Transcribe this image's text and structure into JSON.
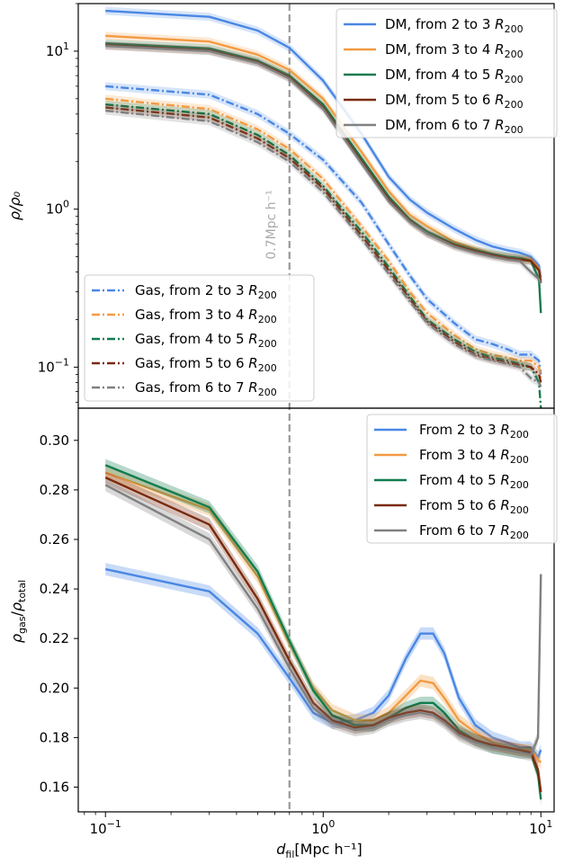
{
  "figure": {
    "xlabel_main": "d",
    "xlabel_sub": "fil",
    "xlabel_units": "[Mpc h⁻¹]",
    "vline_label": "0.7Mpc h⁻¹"
  },
  "chart_data": [
    {
      "type": "line",
      "panel": "top",
      "xscale": "log",
      "yscale": "log",
      "xlim": [
        0.075,
        11.5
      ],
      "ylim": [
        0.055,
        20
      ],
      "ylabel": "ρ/ρ₀",
      "xticks": [
        0.1,
        1,
        10
      ],
      "xtick_labels": [
        "10⁻¹",
        "10⁰",
        "10¹"
      ],
      "yticks": [
        0.1,
        1,
        10
      ],
      "ytick_labels": [
        "10⁻¹",
        "10⁰",
        "10¹"
      ],
      "vline_x": 0.7,
      "legend_dm_location": "top-right",
      "legend_gas_location": "lower-left",
      "x": [
        0.1,
        0.3,
        0.5,
        0.7,
        1.0,
        1.5,
        2.0,
        2.5,
        3.0,
        4.0,
        5.0,
        6.0,
        7.0,
        8.0,
        9.0,
        9.8,
        10.0
      ],
      "series": [
        {
          "name": "DM, from 2 to 3 R₂₀₀",
          "group": "dm",
          "color": "#4a87e4",
          "style": "solid",
          "values": [
            18.0,
            16.5,
            13.5,
            10.5,
            6.5,
            3.0,
            1.6,
            1.15,
            0.95,
            0.75,
            0.64,
            0.58,
            0.55,
            0.53,
            0.5,
            0.44,
            0.37
          ]
        },
        {
          "name": "DM, from 3 to 4 R₂₀₀",
          "group": "dm",
          "color": "#f39b43",
          "style": "solid",
          "values": [
            12.5,
            11.5,
            9.5,
            7.6,
            5.0,
            2.3,
            1.3,
            0.92,
            0.78,
            0.62,
            0.56,
            0.52,
            0.5,
            0.49,
            0.48,
            0.42,
            0.35
          ]
        },
        {
          "name": "DM, from 4 to 5 R₂₀₀",
          "group": "dm",
          "color": "#127c4e",
          "style": "solid",
          "values": [
            11.2,
            10.4,
            8.7,
            7.0,
            4.6,
            2.1,
            1.2,
            0.86,
            0.72,
            0.6,
            0.55,
            0.52,
            0.5,
            0.49,
            0.47,
            0.36,
            0.22
          ]
        },
        {
          "name": "DM, from 5 to 6 R₂₀₀",
          "group": "dm",
          "color": "#7a2a0c",
          "style": "solid",
          "values": [
            10.9,
            10.1,
            8.5,
            6.8,
            4.4,
            2.0,
            1.15,
            0.84,
            0.7,
            0.59,
            0.54,
            0.51,
            0.49,
            0.48,
            0.47,
            0.41,
            0.34
          ]
        },
        {
          "name": "DM, from 6 to 7 R₂₀₀",
          "group": "dm",
          "color": "#808080",
          "style": "solid",
          "values": [
            10.8,
            10.0,
            8.4,
            6.7,
            4.3,
            1.95,
            1.12,
            0.83,
            0.7,
            0.58,
            0.53,
            0.5,
            0.48,
            0.47,
            0.4,
            0.36,
            0.34
          ]
        },
        {
          "name": "Gas, from 2 to 3 R₂₀₀",
          "group": "gas",
          "color": "#4a87e4",
          "style": "dashdot",
          "values": [
            6.0,
            5.3,
            4.0,
            3.0,
            2.05,
            1.1,
            0.6,
            0.38,
            0.27,
            0.19,
            0.15,
            0.14,
            0.13,
            0.12,
            0.12,
            0.11,
            0.09
          ]
        },
        {
          "name": "Gas, from 3 to 4 R₂₀₀",
          "group": "gas",
          "color": "#f39b43",
          "style": "dashdot",
          "values": [
            5.0,
            4.3,
            3.2,
            2.4,
            1.55,
            0.78,
            0.47,
            0.3,
            0.22,
            0.16,
            0.13,
            0.12,
            0.115,
            0.11,
            0.11,
            0.1,
            0.085
          ]
        },
        {
          "name": "Gas, from 4 to 5 R₂₀₀",
          "group": "gas",
          "color": "#127c4e",
          "style": "dashdot",
          "values": [
            4.6,
            4.0,
            2.95,
            2.2,
            1.4,
            0.72,
            0.43,
            0.28,
            0.2,
            0.15,
            0.125,
            0.115,
            0.11,
            0.105,
            0.1,
            0.08,
            0.055
          ]
        },
        {
          "name": "Gas, from 5 to 6 R₂₀₀",
          "group": "gas",
          "color": "#7a2a0c",
          "style": "dashdot",
          "values": [
            4.4,
            3.8,
            2.8,
            2.1,
            1.35,
            0.68,
            0.41,
            0.27,
            0.195,
            0.145,
            0.12,
            0.112,
            0.107,
            0.103,
            0.1,
            0.09,
            0.08
          ]
        },
        {
          "name": "Gas, from 6 to 7 R₂₀₀",
          "group": "gas",
          "color": "#808080",
          "style": "dashdot",
          "values": [
            4.2,
            3.6,
            2.65,
            2.0,
            1.28,
            0.65,
            0.39,
            0.26,
            0.19,
            0.14,
            0.118,
            0.11,
            0.105,
            0.1,
            0.085,
            0.08,
            0.075
          ]
        }
      ]
    },
    {
      "type": "line",
      "panel": "bottom",
      "xscale": "log",
      "yscale": "linear",
      "xlim": [
        0.075,
        11.5
      ],
      "ylim": [
        0.15,
        0.313
      ],
      "ylabel_main": "ρ",
      "ylabel_num_sub": "gas",
      "ylabel_den_sub": "total",
      "xticks": [
        0.1,
        1,
        10
      ],
      "xtick_labels": [
        "10⁻¹",
        "10⁰",
        "10¹"
      ],
      "yticks": [
        0.16,
        0.18,
        0.2,
        0.22,
        0.24,
        0.26,
        0.28,
        0.3
      ],
      "ytick_labels": [
        "0.16",
        "0.18",
        "0.20",
        "0.22",
        "0.24",
        "0.26",
        "0.28",
        "0.30"
      ],
      "legend_location": "top-right",
      "x": [
        0.1,
        0.3,
        0.5,
        0.7,
        0.9,
        1.1,
        1.4,
        1.7,
        2.0,
        2.4,
        2.8,
        3.2,
        3.6,
        4.2,
        5.0,
        6.0,
        7.0,
        8.0,
        9.0,
        9.7,
        10.0
      ],
      "series": [
        {
          "name": "From 2 to 3 R₂₀₀",
          "color": "#4a87e4",
          "values": [
            0.248,
            0.239,
            0.222,
            0.204,
            0.19,
            0.186,
            0.187,
            0.19,
            0.197,
            0.212,
            0.222,
            0.222,
            0.214,
            0.196,
            0.185,
            0.18,
            0.178,
            0.176,
            0.176,
            0.172,
            0.175
          ]
        },
        {
          "name": "From 3 to 4 R₂₀₀",
          "color": "#f39b43",
          "values": [
            0.287,
            0.272,
            0.245,
            0.218,
            0.2,
            0.191,
            0.187,
            0.187,
            0.19,
            0.197,
            0.203,
            0.202,
            0.196,
            0.187,
            0.182,
            0.178,
            0.176,
            0.175,
            0.175,
            0.171,
            0.17
          ]
        },
        {
          "name": "From 4 to 5 R₂₀₀",
          "color": "#127c4e",
          "values": [
            0.29,
            0.273,
            0.247,
            0.219,
            0.199,
            0.189,
            0.185,
            0.185,
            0.188,
            0.192,
            0.194,
            0.194,
            0.19,
            0.183,
            0.179,
            0.176,
            0.175,
            0.174,
            0.174,
            0.165,
            0.155
          ]
        },
        {
          "name": "From 5 to 6 R₂₀₀",
          "color": "#7a2a0c",
          "values": [
            0.285,
            0.266,
            0.236,
            0.211,
            0.194,
            0.187,
            0.184,
            0.185,
            0.188,
            0.19,
            0.191,
            0.19,
            0.187,
            0.182,
            0.179,
            0.177,
            0.176,
            0.175,
            0.174,
            0.167,
            0.158
          ]
        },
        {
          "name": "From 6 to 7 R₂₀₀",
          "color": "#808080",
          "values": [
            0.282,
            0.26,
            0.232,
            0.208,
            0.192,
            0.186,
            0.183,
            0.184,
            0.187,
            0.189,
            0.19,
            0.189,
            0.186,
            0.181,
            0.178,
            0.176,
            0.175,
            0.174,
            0.173,
            0.18,
            0.246
          ]
        }
      ]
    }
  ]
}
